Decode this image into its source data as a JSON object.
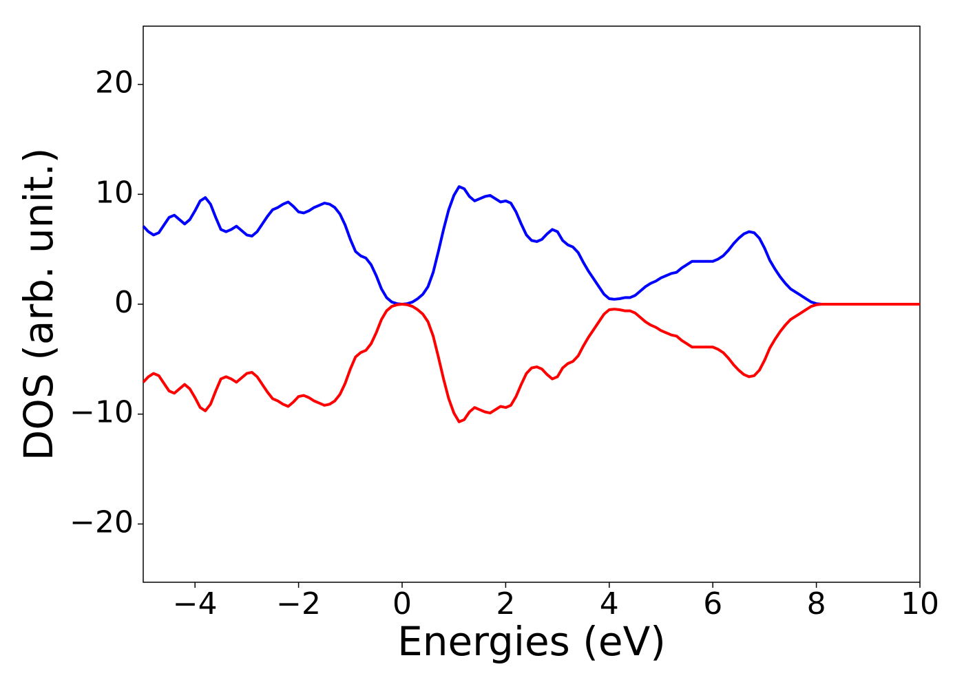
{
  "chart_data": {
    "type": "line",
    "xlabel": "Energies (eV)",
    "ylabel": "DOS (arb. unit.)",
    "x": [
      -5.0,
      -4.9,
      -4.8,
      -4.7,
      -4.6,
      -4.5,
      -4.4,
      -4.3,
      -4.2,
      -4.1,
      -4.0,
      -3.9,
      -3.8,
      -3.7,
      -3.6,
      -3.5,
      -3.4,
      -3.3,
      -3.2,
      -3.1,
      -3.0,
      -2.9,
      -2.8,
      -2.7,
      -2.6,
      -2.5,
      -2.4,
      -2.3,
      -2.2,
      -2.1,
      -2.0,
      -1.9,
      -1.8,
      -1.7,
      -1.6,
      -1.5,
      -1.4,
      -1.3,
      -1.2,
      -1.1,
      -1.0,
      -0.9,
      -0.8,
      -0.7,
      -0.6,
      -0.5,
      -0.4,
      -0.3,
      -0.2,
      -0.1,
      0.0,
      0.1,
      0.2,
      0.3,
      0.4,
      0.5,
      0.6,
      0.7,
      0.8,
      0.9,
      1.0,
      1.1,
      1.2,
      1.3,
      1.4,
      1.5,
      1.6,
      1.7,
      1.8,
      1.9,
      2.0,
      2.1,
      2.2,
      2.3,
      2.4,
      2.5,
      2.6,
      2.7,
      2.8,
      2.9,
      3.0,
      3.1,
      3.2,
      3.3,
      3.4,
      3.5,
      3.6,
      3.7,
      3.8,
      3.9,
      4.0,
      4.1,
      4.2,
      4.3,
      4.4,
      4.5,
      4.6,
      4.7,
      4.8,
      4.9,
      5.0,
      5.1,
      5.2,
      5.3,
      5.4,
      5.5,
      5.6,
      5.7,
      5.8,
      5.9,
      6.0,
      6.1,
      6.2,
      6.3,
      6.4,
      6.5,
      6.6,
      6.7,
      6.8,
      6.9,
      7.0,
      7.1,
      7.2,
      7.3,
      7.4,
      7.5,
      7.6,
      7.7,
      7.8,
      7.9,
      8.0,
      8.1,
      10
    ],
    "series": [
      {
        "color": "#0000ff",
        "values": [
          7.1,
          6.6,
          6.3,
          6.5,
          7.2,
          7.9,
          8.1,
          7.7,
          7.3,
          7.7,
          8.5,
          9.4,
          9.7,
          9.1,
          7.9,
          6.8,
          6.6,
          6.8,
          7.1,
          6.7,
          6.3,
          6.2,
          6.6,
          7.3,
          8.0,
          8.6,
          8.8,
          9.1,
          9.3,
          8.9,
          8.4,
          8.3,
          8.5,
          8.8,
          9.0,
          9.2,
          9.1,
          8.8,
          8.2,
          7.2,
          5.9,
          4.8,
          4.4,
          4.2,
          3.6,
          2.6,
          1.4,
          0.6,
          0.2,
          0.05,
          0,
          0.05,
          0.2,
          0.5,
          0.9,
          1.6,
          2.9,
          4.8,
          6.8,
          8.6,
          9.9,
          10.7,
          10.5,
          9.8,
          9.4,
          9.6,
          9.8,
          9.9,
          9.6,
          9.3,
          9.4,
          9.2,
          8.4,
          7.3,
          6.3,
          5.8,
          5.7,
          5.9,
          6.4,
          6.8,
          6.6,
          5.8,
          5.4,
          5.2,
          4.7,
          3.8,
          3.0,
          2.3,
          1.6,
          0.9,
          0.5,
          0.45,
          0.5,
          0.6,
          0.6,
          0.8,
          1.2,
          1.6,
          1.9,
          2.1,
          2.4,
          2.6,
          2.8,
          2.9,
          3.3,
          3.6,
          3.9,
          3.9,
          3.9,
          3.9,
          3.9,
          4.1,
          4.4,
          4.9,
          5.5,
          6.0,
          6.4,
          6.6,
          6.5,
          6.0,
          5.1,
          4.0,
          3.2,
          2.5,
          1.9,
          1.4,
          1.1,
          0.8,
          0.5,
          0.2,
          0.05,
          0,
          0
        ]
      },
      {
        "color": "#ff0000",
        "values": [
          -7.1,
          -6.6,
          -6.3,
          -6.5,
          -7.2,
          -7.9,
          -8.1,
          -7.7,
          -7.3,
          -7.7,
          -8.5,
          -9.4,
          -9.7,
          -9.1,
          -7.9,
          -6.8,
          -6.6,
          -6.8,
          -7.1,
          -6.7,
          -6.3,
          -6.2,
          -6.6,
          -7.3,
          -8.0,
          -8.6,
          -8.8,
          -9.1,
          -9.3,
          -8.9,
          -8.4,
          -8.3,
          -8.5,
          -8.8,
          -9.0,
          -9.2,
          -9.1,
          -8.8,
          -8.2,
          -7.2,
          -5.9,
          -4.8,
          -4.4,
          -4.2,
          -3.6,
          -2.6,
          -1.4,
          -0.6,
          -0.2,
          -0.05,
          0,
          -0.05,
          -0.2,
          -0.5,
          -0.9,
          -1.6,
          -2.9,
          -4.8,
          -6.8,
          -8.6,
          -9.9,
          -10.7,
          -10.5,
          -9.8,
          -9.4,
          -9.6,
          -9.8,
          -9.9,
          -9.6,
          -9.3,
          -9.4,
          -9.2,
          -8.4,
          -7.3,
          -6.3,
          -5.8,
          -5.7,
          -5.9,
          -6.4,
          -6.8,
          -6.6,
          -5.8,
          -5.4,
          -5.2,
          -4.7,
          -3.8,
          -3.0,
          -2.3,
          -1.6,
          -0.9,
          -0.5,
          -0.45,
          -0.5,
          -0.6,
          -0.6,
          -0.8,
          -1.2,
          -1.6,
          -1.9,
          -2.1,
          -2.4,
          -2.6,
          -2.8,
          -2.9,
          -3.3,
          -3.6,
          -3.9,
          -3.9,
          -3.9,
          -3.9,
          -3.9,
          -4.1,
          -4.4,
          -4.9,
          -5.5,
          -6.0,
          -6.4,
          -6.6,
          -6.5,
          -6.0,
          -5.1,
          -4.0,
          -3.2,
          -2.5,
          -1.9,
          -1.4,
          -1.1,
          -0.8,
          -0.5,
          -0.2,
          -0.05,
          0,
          0
        ]
      }
    ],
    "xlim": [
      -5,
      10
    ],
    "xticks": [
      {
        "value": -4,
        "label": "−4"
      },
      {
        "value": -2,
        "label": "−2"
      },
      0,
      2,
      4,
      6,
      8,
      10
    ],
    "ylim": [
      -25.3,
      25.3
    ],
    "yticks": [
      {
        "value": -20,
        "label": "−20"
      },
      {
        "value": -10,
        "label": "−10"
      },
      0,
      10,
      20
    ],
    "grid": false
  }
}
